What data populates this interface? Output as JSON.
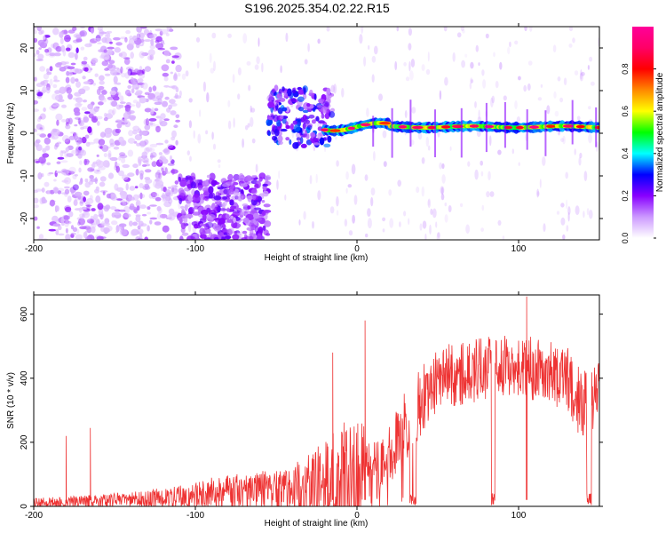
{
  "title": "S196.2025.354.02.22.R15",
  "chart_data": [
    {
      "type": "heatmap",
      "xlabel": "Height of straight line (km)",
      "ylabel": "Frequency (Hz)",
      "xlim": [
        -200,
        150
      ],
      "ylim": [
        -25,
        25
      ],
      "xticks": [
        -200,
        -100,
        0,
        100
      ],
      "yticks": [
        -20,
        -10,
        0,
        10,
        20
      ],
      "colorbar": {
        "label": "Normalized spectral amplitude",
        "range": [
          0.0,
          1.0
        ],
        "ticks": [
          "0.0",
          "0.2",
          "0.4",
          "0.6",
          "0.8"
        ],
        "colormap": "rainbow",
        "colors": [
          "#ffffff",
          "#cc99ff",
          "#8800ff",
          "#0000ff",
          "#00ffff",
          "#00ff00",
          "#ffff00",
          "#ff8800",
          "#ff0000",
          "#ff0066",
          "#ff0099"
        ]
      },
      "features": {
        "noise_region": {
          "x": [
            -200,
            -110
          ],
          "level": 0.1
        },
        "low_band": {
          "x": [
            -110,
            -55
          ],
          "freq": [
            -10,
            -25
          ],
          "level": 0.15
        },
        "transition": {
          "x": [
            -55,
            -15
          ],
          "freq": [
            0,
            10
          ],
          "level": 0.3
        },
        "tone_line": {
          "x": [
            -15,
            150
          ],
          "freq": 1.5,
          "level": 0.7
        }
      }
    },
    {
      "type": "line",
      "xlabel": "Height of straight line (km)",
      "ylabel": "SNR (10 * v/v)",
      "xlim": [
        -200,
        150
      ],
      "ylim": [
        0,
        660
      ],
      "xticks": [
        -200,
        -100,
        0,
        100
      ],
      "yticks": [
        0,
        200,
        400,
        600
      ],
      "grid": false,
      "color": "#ee3333",
      "envelope": {
        "x": [
          -200,
          -170,
          -140,
          -110,
          -90,
          -60,
          -40,
          -25,
          -15,
          0,
          15,
          30,
          50,
          70,
          90,
          110,
          130,
          140,
          150
        ],
        "base": [
          10,
          15,
          20,
          30,
          40,
          50,
          60,
          70,
          80,
          120,
          120,
          250,
          400,
          420,
          440,
          430,
          400,
          300,
          350
        ],
        "spread": [
          15,
          20,
          25,
          35,
          50,
          60,
          80,
          120,
          150,
          200,
          80,
          120,
          100,
          100,
          100,
          100,
          100,
          120,
          100
        ]
      },
      "spikes": [
        {
          "x": -180,
          "y": 215
        },
        {
          "x": -165,
          "y": 245
        },
        {
          "x": -180,
          "y": 220
        },
        {
          "x": -15,
          "y": 480
        },
        {
          "x": 5,
          "y": 580
        },
        {
          "x": 105,
          "y": 655
        }
      ]
    }
  ]
}
